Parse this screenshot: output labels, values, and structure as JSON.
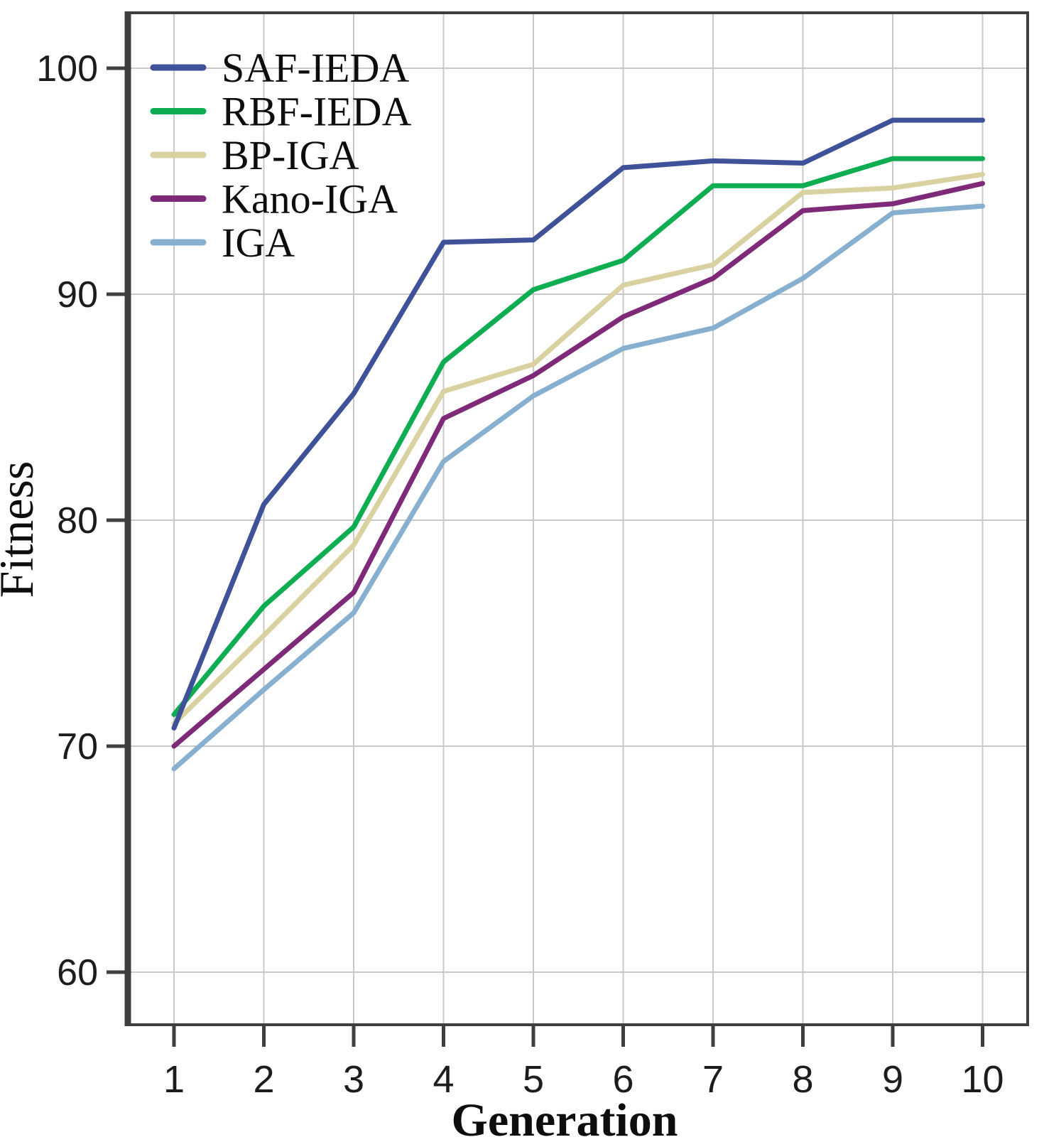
{
  "figure": {
    "background_color": "#ffffff",
    "frame_color": "#3f3f3f",
    "grid_color": "#c9c9c9",
    "text_color": "#1c1c1c"
  },
  "chart_data": {
    "type": "line",
    "title": "",
    "xlabel": "Generation",
    "ylabel": "Fitness",
    "x": [
      1,
      2,
      3,
      4,
      5,
      6,
      7,
      8,
      9,
      10
    ],
    "x_tick_labels": [
      "1",
      "2",
      "3",
      "4",
      "5",
      "6",
      "7",
      "8",
      "9",
      "10"
    ],
    "y_ticks": [
      100,
      90,
      80,
      70,
      60
    ],
    "y_tick_labels": [
      "100",
      "90",
      "80",
      "70",
      "60"
    ],
    "xlim": [
      0.47,
      10.5
    ],
    "ylim": [
      57.6,
      102.5
    ],
    "grid": true,
    "legend_position": "top-left",
    "series": [
      {
        "name": "SAF-IEDA",
        "color": "#3e5199",
        "values": [
          70.8,
          80.7,
          85.6,
          92.3,
          92.4,
          95.6,
          95.9,
          95.8,
          97.7,
          97.7
        ]
      },
      {
        "name": "RBF-IEDA",
        "color": "#0ead52",
        "values": [
          71.4,
          76.2,
          79.7,
          87.0,
          90.2,
          91.5,
          94.8,
          94.8,
          96.0,
          96.0
        ]
      },
      {
        "name": "BP-IGA",
        "color": "#d9d1a0",
        "values": [
          71.0,
          74.9,
          78.9,
          85.7,
          86.9,
          90.4,
          91.3,
          94.5,
          94.7,
          95.3
        ]
      },
      {
        "name": "Kano-IGA",
        "color": "#7f2a78",
        "values": [
          70.0,
          73.4,
          76.8,
          84.5,
          86.4,
          89.0,
          90.7,
          93.7,
          94.0,
          94.9
        ]
      },
      {
        "name": "IGA",
        "color": "#87b0d0",
        "values": [
          69.0,
          72.5,
          75.9,
          82.6,
          85.5,
          87.6,
          88.5,
          90.7,
          93.6,
          93.9
        ]
      }
    ]
  }
}
